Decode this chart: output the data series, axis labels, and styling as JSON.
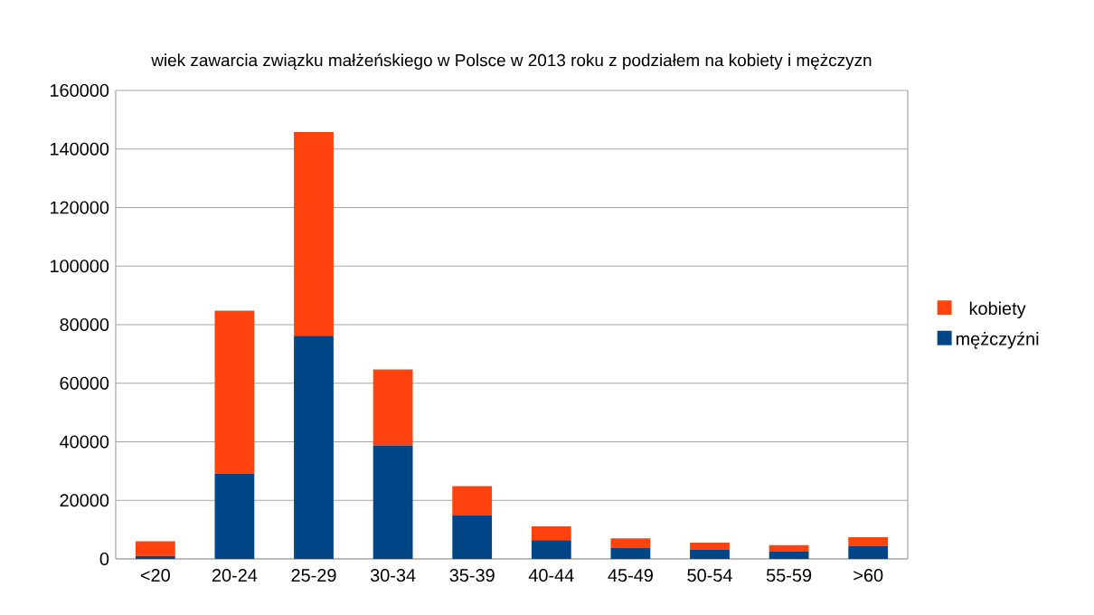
{
  "chart_data": {
    "type": "bar",
    "stacked": true,
    "title": "wiek zawarcia związku małżeńskiego w Polsce w 2013 roku z podziałem na kobiety i mężczyzn",
    "categories": [
      "<20",
      "20-24",
      "25-29",
      "30-34",
      "35-39",
      "40-44",
      "45-49",
      "50-54",
      "55-59",
      ">60"
    ],
    "series": [
      {
        "name": "mężczyźni",
        "color": "#004586",
        "values": [
          1000,
          29200,
          76200,
          38800,
          14800,
          6400,
          3900,
          3100,
          2500,
          4500
        ]
      },
      {
        "name": "kobiety",
        "color": "#ff420e",
        "values": [
          5000,
          55600,
          69600,
          25900,
          10100,
          4700,
          3100,
          2500,
          2200,
          2900
        ]
      }
    ],
    "ylim": [
      0,
      160000
    ],
    "yticks": [
      0,
      20000,
      40000,
      60000,
      80000,
      100000,
      120000,
      140000,
      160000
    ],
    "grid": "y",
    "legend": "right"
  }
}
